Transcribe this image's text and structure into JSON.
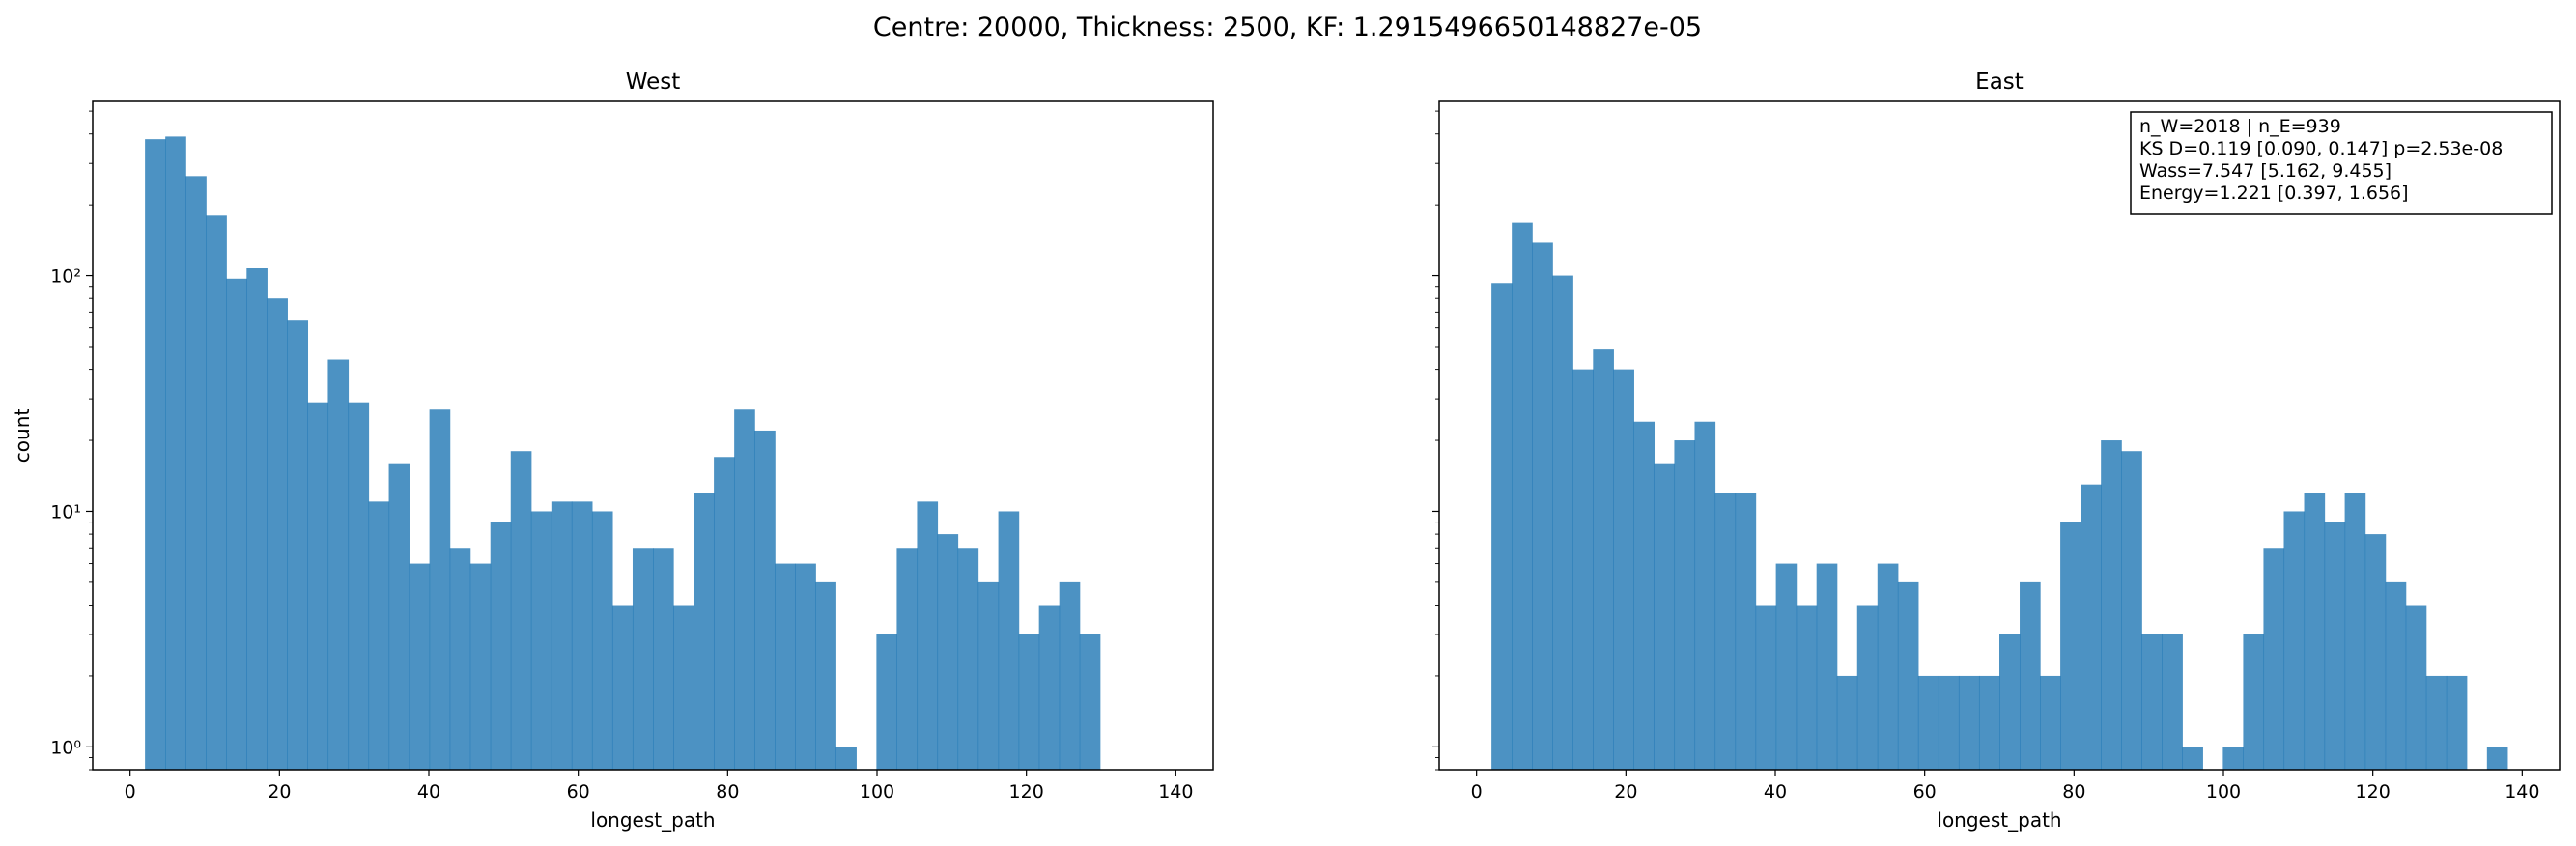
{
  "suptitle": "Centre: 20000, Thickness: 2500, KF: 1.2915496650148827e-05",
  "chart_data": [
    {
      "type": "bar",
      "subtype": "histogram",
      "title": "West",
      "xlabel": "longest_path",
      "ylabel": "count",
      "yscale": "log",
      "xlim": [
        -5,
        145
      ],
      "ylim": [
        0.8,
        550
      ],
      "xticks": [
        0,
        20,
        40,
        60,
        80,
        100,
        120,
        140
      ],
      "yticks": [
        {
          "value": 1,
          "label": "10⁰"
        },
        {
          "value": 10,
          "label": "10¹"
        },
        {
          "value": 100,
          "label": "10²"
        }
      ],
      "bin_start": 2,
      "bin_width": 2.72,
      "values": [
        380,
        390,
        265,
        180,
        97,
        108,
        80,
        65,
        29,
        44,
        29,
        11,
        16,
        6,
        27,
        7,
        6,
        9,
        18,
        10,
        11,
        11,
        10,
        4,
        7,
        7,
        4,
        12,
        17,
        27,
        22,
        6,
        6,
        5,
        1,
        0,
        3,
        7,
        11,
        8,
        7,
        5,
        10,
        3,
        4,
        5,
        3
      ],
      "color": "#1f77b4",
      "grid": false,
      "annotation": []
    },
    {
      "type": "bar",
      "subtype": "histogram",
      "title": "East",
      "xlabel": "longest_path",
      "ylabel": "",
      "yscale": "log",
      "xlim": [
        -5,
        145
      ],
      "ylim": [
        0.8,
        550
      ],
      "xticks": [
        0,
        20,
        40,
        60,
        80,
        100,
        120,
        140
      ],
      "yticks": [],
      "bin_start": 2,
      "bin_width": 2.72,
      "values": [
        93,
        168,
        138,
        100,
        40,
        49,
        40,
        24,
        16,
        20,
        24,
        12,
        12,
        4,
        6,
        4,
        6,
        2,
        4,
        6,
        5,
        2,
        2,
        2,
        2,
        3,
        5,
        2,
        9,
        13,
        20,
        18,
        3,
        3,
        1,
        0,
        1,
        3,
        7,
        10,
        12,
        9,
        12,
        8,
        5,
        4,
        2,
        2,
        0,
        1
      ],
      "color": "#1f77b4",
      "grid": false,
      "annotation": [
        "n_W=2018 | n_E=939",
        "KS D=0.119 [0.090, 0.147]  p=2.53e-08",
        "Wass=7.547 [5.162, 9.455]",
        "Energy=1.221 [0.397, 1.656]"
      ]
    }
  ]
}
